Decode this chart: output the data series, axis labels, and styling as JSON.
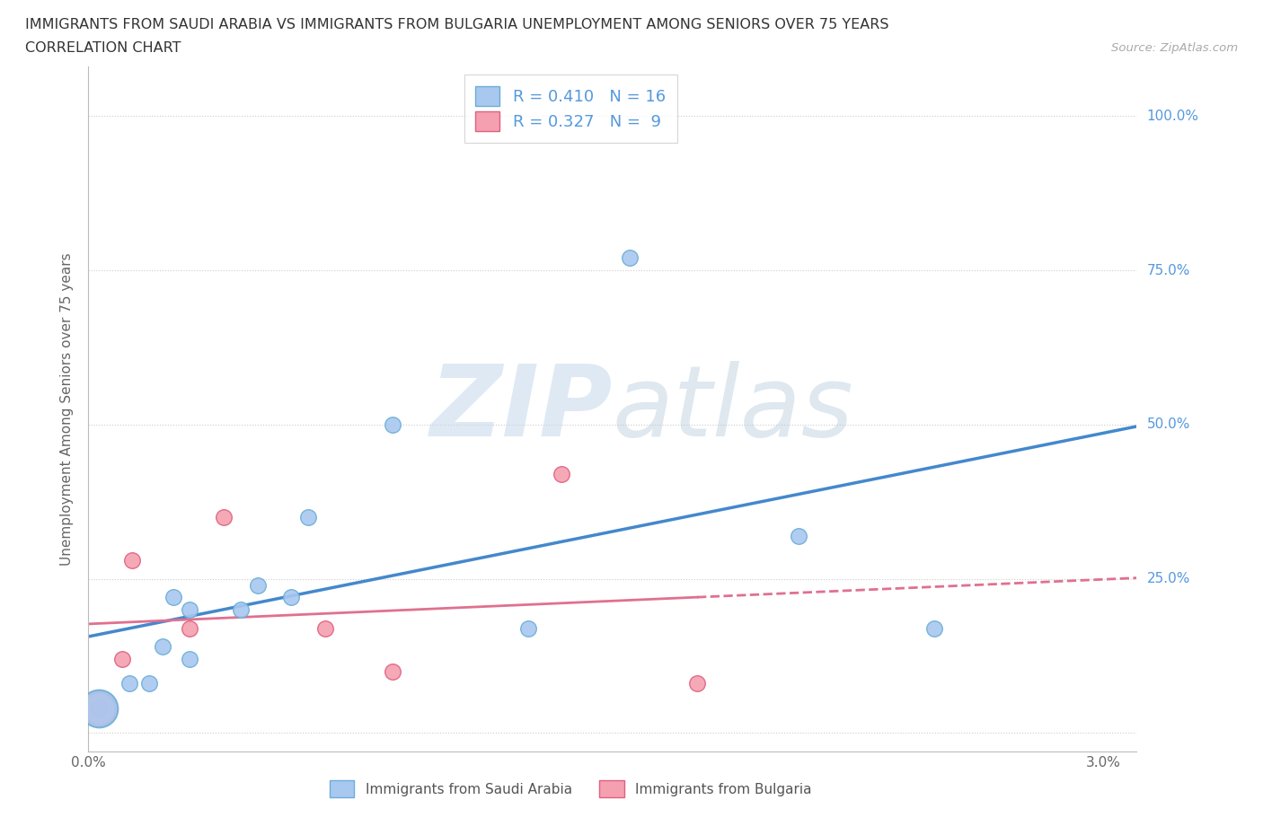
{
  "title_line1": "IMMIGRANTS FROM SAUDI ARABIA VS IMMIGRANTS FROM BULGARIA UNEMPLOYMENT AMONG SENIORS OVER 75 YEARS",
  "title_line2": "CORRELATION CHART",
  "source_text": "Source: ZipAtlas.com",
  "ylabel": "Unemployment Among Seniors over 75 years",
  "xlim": [
    0.0,
    0.031
  ],
  "ylim": [
    -0.03,
    1.08
  ],
  "xtick_positions": [
    0.0,
    0.005,
    0.01,
    0.015,
    0.02,
    0.025,
    0.03
  ],
  "xticklabels": [
    "0.0%",
    "",
    "",
    "",
    "",
    "",
    "3.0%"
  ],
  "ytick_positions": [
    0.0,
    0.25,
    0.5,
    0.75,
    1.0
  ],
  "yticklabels_right": [
    "",
    "25.0%",
    "50.0%",
    "75.0%",
    "100.0%"
  ],
  "saudi_x": [
    0.0003,
    0.0012,
    0.0018,
    0.0022,
    0.0025,
    0.003,
    0.003,
    0.0045,
    0.005,
    0.006,
    0.0065,
    0.009,
    0.013,
    0.016,
    0.021,
    0.025
  ],
  "saudi_y": [
    0.04,
    0.08,
    0.08,
    0.14,
    0.22,
    0.12,
    0.2,
    0.2,
    0.24,
    0.22,
    0.35,
    0.5,
    0.17,
    0.77,
    0.32,
    0.17
  ],
  "bulgaria_x": [
    0.0003,
    0.001,
    0.0013,
    0.003,
    0.004,
    0.007,
    0.009,
    0.014,
    0.018
  ],
  "bulgaria_y": [
    0.04,
    0.12,
    0.28,
    0.17,
    0.35,
    0.17,
    0.1,
    0.42,
    0.08
  ],
  "saudi_color": "#a8c8f0",
  "saudi_edge_color": "#6baed6",
  "bulgaria_color": "#f4a0b0",
  "bulgaria_edge_color": "#e06080",
  "saudi_line_color": "#4488cc",
  "bulgaria_line_color": "#e07090",
  "r_saudi": 0.41,
  "n_saudi": 16,
  "r_bulgaria": 0.327,
  "n_bulgaria": 9,
  "watermark_zip": "ZIP",
  "watermark_atlas": "atlas",
  "legend_saudi": "Immigrants from Saudi Arabia",
  "legend_bulgaria": "Immigrants from Bulgaria",
  "background_color": "#ffffff",
  "grid_color": "#cccccc",
  "ytick_color": "#5599dd",
  "xtick_color": "#666666"
}
